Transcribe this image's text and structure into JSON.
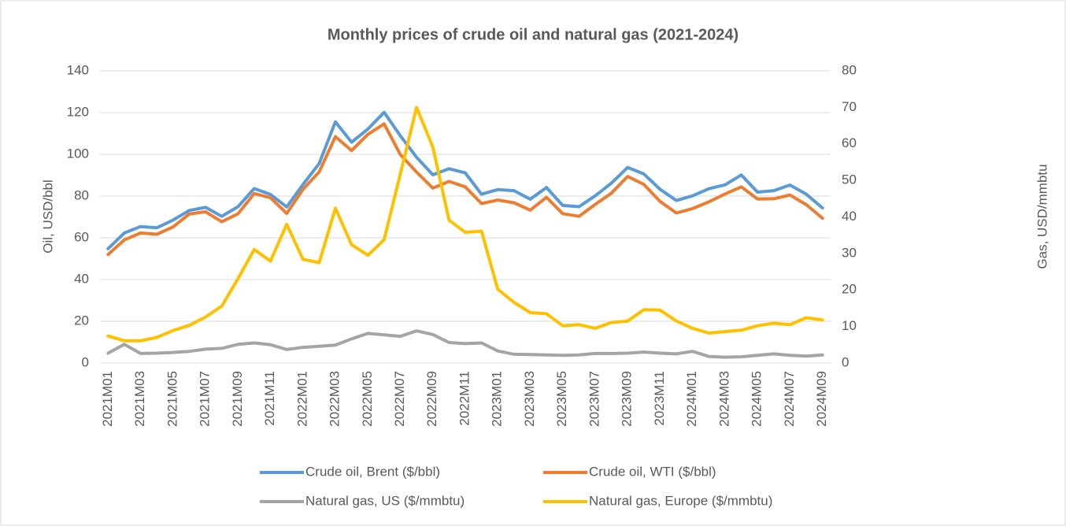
{
  "chart_data": {
    "type": "line",
    "title": "Monthly prices of crude oil and natural gas (2021-2024)",
    "y_label": "Oil, USD/bbl",
    "y2_label": "Gas, USD/mmbtu",
    "categories": [
      "2021M01",
      null,
      "2021M03",
      null,
      "2021M05",
      null,
      "2021M07",
      null,
      "2021M09",
      null,
      "2021M11",
      null,
      "2022M01",
      null,
      "2022M03",
      null,
      "2022M05",
      null,
      "2022M07",
      null,
      "2022M09",
      null,
      "2022M11",
      null,
      "2023M01",
      null,
      "2023M03",
      null,
      "2023M05",
      null,
      "2023M07",
      null,
      "2023M09",
      null,
      "2023M11",
      null,
      "2024M01",
      null,
      "2024M03",
      null,
      "2024M05",
      null,
      "2024M07",
      null,
      "2024M09"
    ],
    "series": [
      {
        "name": "Crude oil, Brent ($/bbl)",
        "color": "#5b9bd5",
        "axis": "y",
        "values": [
          54.8,
          62.3,
          65.4,
          64.8,
          68.5,
          73.1,
          74.6,
          70.3,
          74.9,
          83.6,
          80.8,
          74.8,
          85.5,
          95.6,
          115.6,
          105.8,
          112.1,
          120.1,
          108.9,
          98.6,
          90.2,
          93.1,
          91.1,
          80.9,
          83.1,
          82.6,
          78.5,
          84.1,
          75.5,
          74.9,
          80.1,
          86.2,
          93.7,
          90.6,
          83.2,
          77.9,
          80.1,
          83.5,
          85.4,
          90.1,
          81.9,
          82.6,
          85.3,
          80.9,
          74.3
        ]
      },
      {
        "name": "Crude oil, WTI ($/bbl)",
        "color": "#ed7d31",
        "axis": "y",
        "values": [
          52.0,
          59.0,
          62.3,
          61.7,
          65.2,
          71.4,
          72.5,
          67.7,
          71.5,
          81.2,
          79.2,
          71.7,
          83.2,
          91.6,
          108.5,
          101.8,
          109.6,
          114.6,
          99.9,
          91.5,
          83.8,
          87.0,
          84.4,
          76.4,
          78.1,
          76.8,
          73.3,
          79.4,
          71.6,
          70.3,
          76.0,
          81.4,
          89.4,
          85.6,
          77.4,
          71.9,
          74.0,
          77.2,
          81.0,
          84.4,
          78.6,
          78.7,
          80.5,
          75.9,
          69.4
        ]
      },
      {
        "name": "Natural gas, US ($/mmbtu)",
        "color": "#a5a5a5",
        "axis": "y2",
        "values": [
          2.7,
          5.1,
          2.6,
          2.7,
          2.9,
          3.2,
          3.8,
          4.0,
          5.1,
          5.5,
          5.0,
          3.7,
          4.3,
          4.6,
          4.9,
          6.6,
          8.1,
          7.7,
          7.3,
          8.8,
          7.8,
          5.6,
          5.3,
          5.5,
          3.3,
          2.4,
          2.3,
          2.2,
          2.1,
          2.2,
          2.6,
          2.6,
          2.7,
          3.0,
          2.7,
          2.5,
          3.2,
          1.8,
          1.6,
          1.7,
          2.1,
          2.5,
          2.1,
          1.9,
          2.2
        ]
      },
      {
        "name": "Natural gas, Europe ($/mmbtu)",
        "color": "#ffc000",
        "axis": "y2",
        "values": [
          7.4,
          6.1,
          6.1,
          7.0,
          8.9,
          10.3,
          12.6,
          15.6,
          23.1,
          31.1,
          27.9,
          38.0,
          28.4,
          27.5,
          42.4,
          32.4,
          29.5,
          33.8,
          51.8,
          70.0,
          59.1,
          39.1,
          35.8,
          36.1,
          20.2,
          16.6,
          13.8,
          13.5,
          10.2,
          10.5,
          9.5,
          11.1,
          11.5,
          14.6,
          14.5,
          11.5,
          9.5,
          8.2,
          8.6,
          9.0,
          10.2,
          10.9,
          10.5,
          12.4,
          11.8
        ]
      }
    ],
    "ylim": [
      0,
      140
    ],
    "yticks": [
      0,
      20,
      40,
      60,
      80,
      100,
      120,
      140
    ],
    "y2lim": [
      0,
      80
    ],
    "y2ticks": [
      0,
      10,
      20,
      30,
      40,
      50,
      60,
      70,
      80
    ],
    "grid": true
  }
}
